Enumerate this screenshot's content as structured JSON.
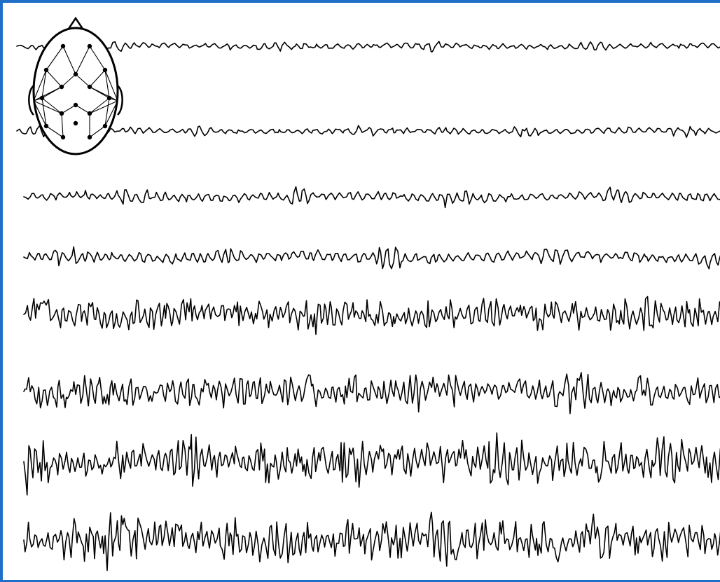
{
  "figure": {
    "ink_color": "#000000",
    "border_color": "#1f6fc9",
    "background": "#ffffff"
  },
  "head_map": {
    "icon": "head-electrode-map-icon"
  },
  "traces": [
    {
      "id": 1,
      "activity": "low-amplitude",
      "amplitude": 0.35,
      "frequency": 1.0
    },
    {
      "id": 2,
      "activity": "low-amplitude",
      "amplitude": 0.35,
      "frequency": 1.0
    },
    {
      "id": 3,
      "activity": "low-amplitude",
      "amplitude": 0.55,
      "frequency": 1.1
    },
    {
      "id": 4,
      "activity": "low-amplitude",
      "amplitude": 0.65,
      "frequency": 1.1
    },
    {
      "id": 5,
      "activity": "spiky",
      "amplitude": 1.1,
      "frequency": 1.4
    },
    {
      "id": 6,
      "activity": "spiky",
      "amplitude": 1.15,
      "frequency": 1.4
    },
    {
      "id": 7,
      "activity": "high-amplitude",
      "amplitude": 1.5,
      "frequency": 1.5
    },
    {
      "id": 8,
      "activity": "high-amplitude",
      "amplitude": 1.55,
      "frequency": 1.5
    }
  ]
}
